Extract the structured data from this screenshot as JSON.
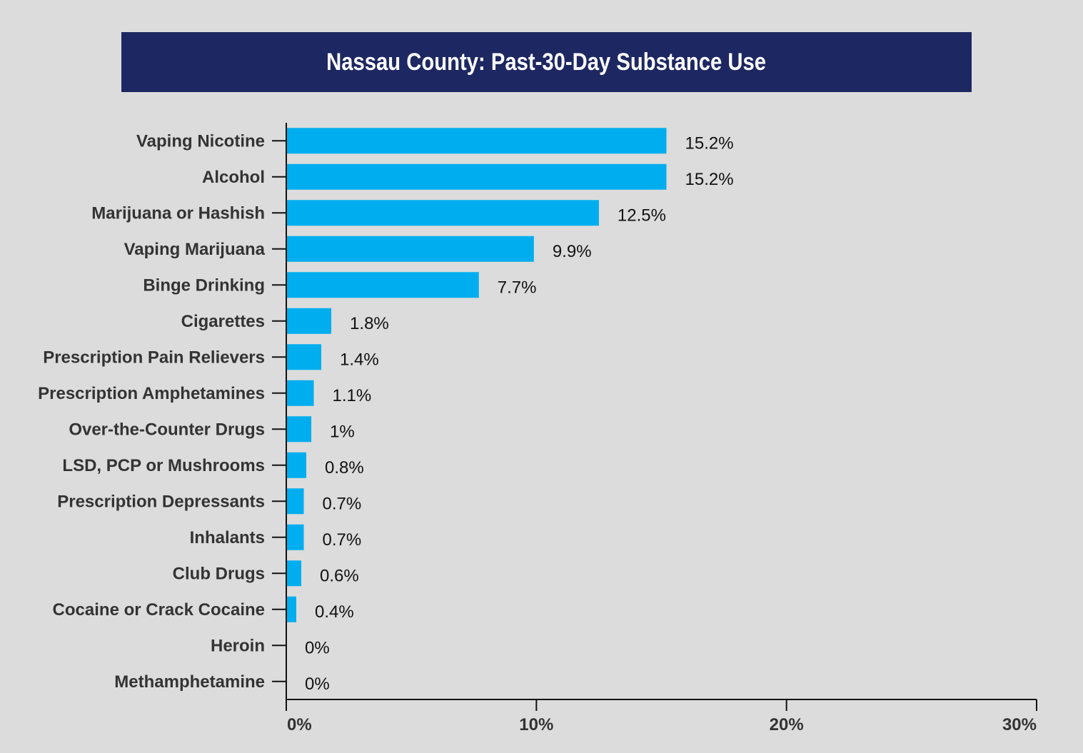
{
  "chart_data": {
    "type": "bar",
    "orientation": "horizontal",
    "title": "Nassau County: Past-30-Day Substance Use",
    "categories": [
      "Vaping Nicotine",
      "Alcohol",
      "Marijuana or Hashish",
      "Vaping Marijuana",
      "Binge Drinking",
      "Cigarettes",
      "Prescription Pain Relievers",
      "Prescription Amphetamines",
      "Over-the-Counter Drugs",
      "LSD, PCP or Mushrooms",
      "Prescription Depressants",
      "Inhalants",
      "Club Drugs",
      "Cocaine or Crack Cocaine",
      "Heroin",
      "Methamphetamine"
    ],
    "values": [
      15.2,
      15.2,
      12.5,
      9.9,
      7.7,
      1.8,
      1.4,
      1.1,
      1.0,
      0.8,
      0.7,
      0.7,
      0.6,
      0.4,
      0.0,
      0.0
    ],
    "data_labels": [
      "15.2%",
      "15.2%",
      "12.5%",
      "9.9%",
      "7.7%",
      "1.8%",
      "1.4%",
      "1.1%",
      "1%",
      "0.8%",
      "0.7%",
      "0.7%",
      "0.6%",
      "0.4%",
      "0%",
      "0%"
    ],
    "xlim": [
      0,
      30
    ],
    "x_ticks": [
      0,
      10,
      20,
      30
    ],
    "x_tick_labels": [
      "0%",
      "10%",
      "20%",
      "30%"
    ],
    "xlabel": "",
    "ylabel": "",
    "grid": false,
    "legend": "none",
    "colors": {
      "bar": "#00aeef",
      "banner": "#1d2762",
      "background": "#dcdcdc",
      "axis": "#111111"
    }
  }
}
